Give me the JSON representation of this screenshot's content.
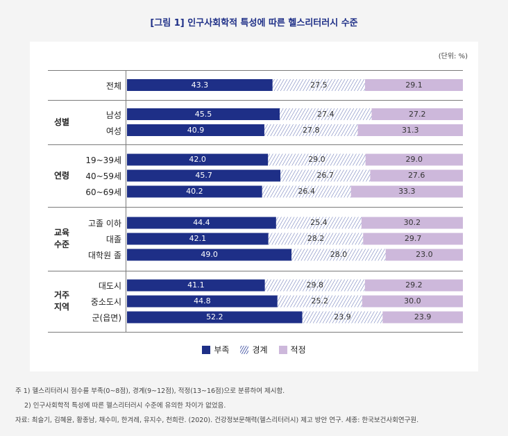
{
  "title": "[그림 1] 인구사회학적 특성에 따른 헬스리터러시 수준",
  "unit": "(단위: %)",
  "colors": {
    "deficient": "#1e2f87",
    "borderline": "#5b6ab0",
    "adequate": "#cdb8db"
  },
  "chart_data": {
    "type": "bar",
    "orientation": "horizontal",
    "stacked": true,
    "xlim": [
      0,
      100
    ],
    "series_names": [
      "부족",
      "경계",
      "적정"
    ],
    "groups": [
      {
        "name": "",
        "rows": [
          {
            "label": "전체",
            "values": [
              43.3,
              27.5,
              29.1
            ],
            "labels": [
              "43.3",
              "27.5",
              "29.1"
            ]
          }
        ]
      },
      {
        "name": "성별",
        "rows": [
          {
            "label": "남성",
            "values": [
              45.5,
              27.4,
              27.2
            ],
            "labels": [
              "45.5",
              "27.4",
              "27.2"
            ]
          },
          {
            "label": "여성",
            "values": [
              40.9,
              27.8,
              31.3
            ],
            "labels": [
              "40.9",
              "27.8",
              "31.3"
            ]
          }
        ]
      },
      {
        "name": "연령",
        "rows": [
          {
            "label": "19~39세",
            "values": [
              42.0,
              29.0,
              29.0
            ],
            "labels": [
              "42.0",
              "29.0",
              "29.0"
            ]
          },
          {
            "label": "40~59세",
            "values": [
              45.7,
              26.7,
              27.6
            ],
            "labels": [
              "45.7",
              "26.7",
              "27.6"
            ]
          },
          {
            "label": "60~69세",
            "values": [
              40.2,
              26.4,
              33.3
            ],
            "labels": [
              "40.2",
              "26.4",
              "33.3"
            ]
          }
        ]
      },
      {
        "name": "교육\n수준",
        "rows": [
          {
            "label": "고졸 이하",
            "values": [
              44.4,
              25.4,
              30.2
            ],
            "labels": [
              "44.4",
              "25.4",
              "30.2"
            ]
          },
          {
            "label": "대졸",
            "values": [
              42.1,
              28.2,
              29.7
            ],
            "labels": [
              "42.1",
              "28.2",
              "29.7"
            ]
          },
          {
            "label": "대학원 졸",
            "values": [
              49.0,
              28.0,
              23.0
            ],
            "labels": [
              "49.0",
              "28.0",
              "23.0"
            ]
          }
        ]
      },
      {
        "name": "거주\n지역",
        "rows": [
          {
            "label": "대도시",
            "values": [
              41.1,
              29.8,
              29.2
            ],
            "labels": [
              "41.1",
              "29.8",
              "29.2"
            ]
          },
          {
            "label": "중소도시",
            "values": [
              44.8,
              25.2,
              30.0
            ],
            "labels": [
              "44.8",
              "25.2",
              "30.0"
            ]
          },
          {
            "label": "군(읍면)",
            "values": [
              52.2,
              23.9,
              23.9
            ],
            "labels": [
              "52.2",
              "23.9",
              "23.9"
            ]
          }
        ]
      }
    ]
  },
  "legend": {
    "deficient": "부족",
    "borderline": "경계",
    "adequate": "적정"
  },
  "notes": {
    "note1": "주 1) 헬스리터러시 점수를 부족(0~8점), 경계(9~12점), 적정(13~16점)으로 분류하여 제시함.",
    "note2": "2) 인구사회학적 특성에 따른 헬스리터러시 수준에 유의한 차이가 없었음.",
    "source": "자료: 최슬기, 김혜윤, 황종남, 채수미, 한겨레, 유지수, 천희란. (2020). 건강정보문해력(헬스리터러시) 제고 방안 연구. 세종: 한국보건사회연구원."
  }
}
